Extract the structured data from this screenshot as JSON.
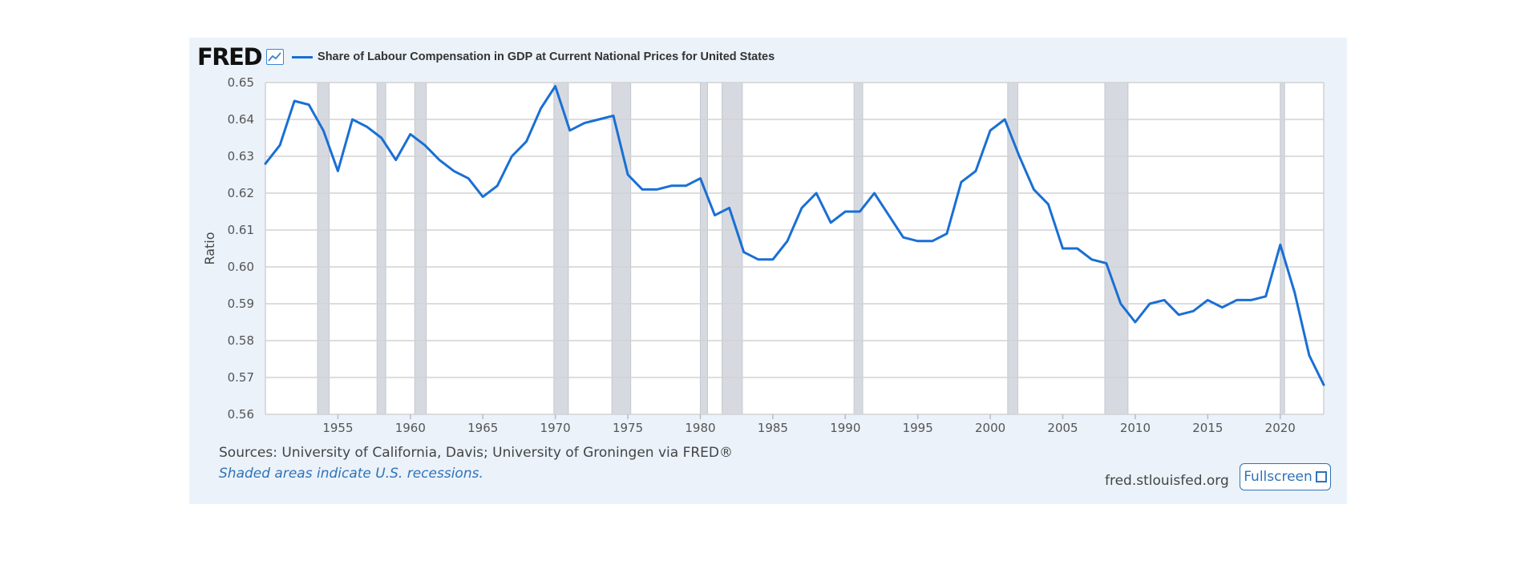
{
  "brand": {
    "logo_text": "FRED"
  },
  "chart_data": {
    "type": "line",
    "title": "Share of Labour Compensation in GDP at Current National Prices for United States",
    "xlabel": "",
    "ylabel": "Ratio",
    "xlim": [
      1950,
      2023
    ],
    "ylim": [
      0.56,
      0.65
    ],
    "x_ticks": [
      1955,
      1960,
      1965,
      1970,
      1975,
      1980,
      1985,
      1990,
      1995,
      2000,
      2005,
      2010,
      2015,
      2020
    ],
    "y_ticks": [
      "0.56",
      "0.57",
      "0.58",
      "0.59",
      "0.60",
      "0.61",
      "0.62",
      "0.63",
      "0.64",
      "0.65"
    ],
    "recessions": [
      [
        1953.6,
        1954.4
      ],
      [
        1957.7,
        1958.3
      ],
      [
        1960.3,
        1961.1
      ],
      [
        1969.9,
        1970.9
      ],
      [
        1973.9,
        1975.2
      ],
      [
        1980.0,
        1980.5
      ],
      [
        1981.5,
        1982.9
      ],
      [
        1990.6,
        1991.2
      ],
      [
        2001.2,
        2001.9
      ],
      [
        2007.9,
        2009.5
      ],
      [
        2020.0,
        2020.3
      ]
    ],
    "series": [
      {
        "name": "Share of Labour Compensation in GDP at Current National Prices for United States",
        "color": "#1a6fd4",
        "x": [
          1950,
          1951,
          1952,
          1953,
          1954,
          1955,
          1956,
          1957,
          1958,
          1959,
          1960,
          1961,
          1962,
          1963,
          1964,
          1965,
          1966,
          1967,
          1968,
          1969,
          1970,
          1971,
          1972,
          1973,
          1974,
          1975,
          1976,
          1977,
          1978,
          1979,
          1980,
          1981,
          1982,
          1983,
          1984,
          1985,
          1986,
          1987,
          1988,
          1989,
          1990,
          1991,
          1992,
          1993,
          1994,
          1995,
          1996,
          1997,
          1998,
          1999,
          2000,
          2001,
          2002,
          2003,
          2004,
          2005,
          2006,
          2007,
          2008,
          2009,
          2010,
          2011,
          2012,
          2013,
          2014,
          2015,
          2016,
          2017,
          2018,
          2019,
          2020,
          2021,
          2022,
          2023
        ],
        "values": [
          0.628,
          0.633,
          0.645,
          0.644,
          0.637,
          0.626,
          0.64,
          0.638,
          0.635,
          0.629,
          0.636,
          0.633,
          0.629,
          0.626,
          0.624,
          0.619,
          0.622,
          0.63,
          0.634,
          0.643,
          0.649,
          0.637,
          0.639,
          0.64,
          0.641,
          0.625,
          0.621,
          0.621,
          0.622,
          0.622,
          0.624,
          0.614,
          0.616,
          0.604,
          0.602,
          0.602,
          0.607,
          0.616,
          0.62,
          0.612,
          0.615,
          0.615,
          0.62,
          0.614,
          0.608,
          0.607,
          0.607,
          0.609,
          0.623,
          0.626,
          0.637,
          0.64,
          0.63,
          0.621,
          0.617,
          0.605,
          0.605,
          0.602,
          0.601,
          0.59,
          0.585,
          0.59,
          0.591,
          0.587,
          0.588,
          0.591,
          0.589,
          0.591,
          0.591,
          0.592,
          0.606,
          0.593,
          0.576,
          0.568
        ]
      }
    ]
  },
  "footer": {
    "sources": "Sources: University of California, Davis; University of Groningen via FRED®",
    "note": "Shaded areas indicate U.S. recessions.",
    "site": "fred.stlouisfed.org",
    "fullscreen_label": "Fullscreen"
  },
  "colors": {
    "line": "#1a6fd4",
    "panel": "#ebf2fa",
    "recession": "#d6dae0",
    "link": "#2f73b7"
  }
}
